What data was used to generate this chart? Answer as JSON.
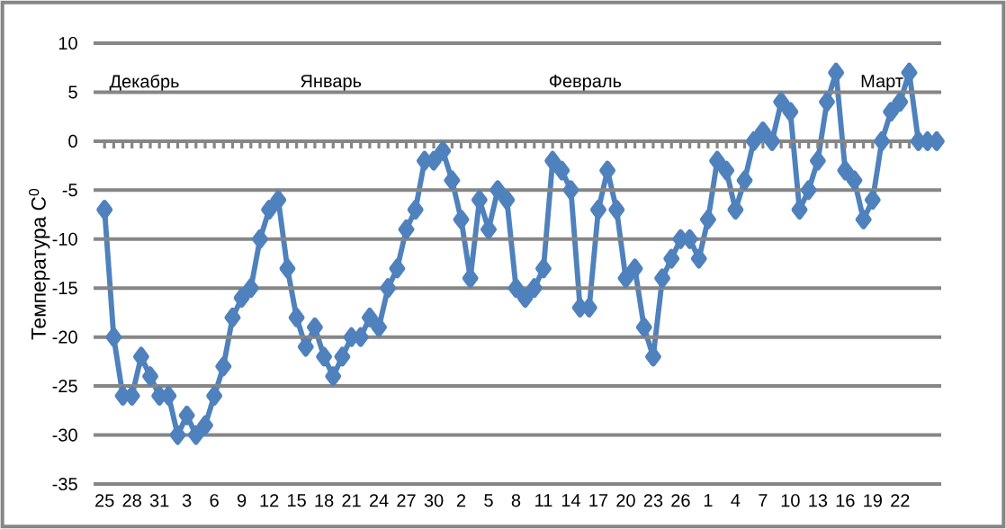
{
  "chart_data": {
    "type": "line",
    "ylabel": "Температура С$^{0}$",
    "categories": [
      "25",
      null,
      null,
      "28",
      null,
      null,
      "31",
      null,
      null,
      "3",
      null,
      null,
      "6",
      null,
      null,
      "9",
      null,
      null,
      "12",
      null,
      null,
      "15",
      null,
      null,
      "18",
      null,
      null,
      "21",
      null,
      null,
      "24",
      null,
      null,
      "27",
      null,
      null,
      "30",
      null,
      null,
      "2",
      null,
      null,
      "5",
      null,
      null,
      "8",
      null,
      null,
      "11",
      null,
      null,
      "14",
      null,
      null,
      "17",
      null,
      null,
      "20",
      null,
      null,
      "23",
      null,
      null,
      "26",
      null,
      null,
      "1",
      null,
      null,
      "4",
      null,
      null,
      "7",
      null,
      null,
      "10",
      null,
      null,
      "13",
      null,
      null,
      "16",
      null,
      null,
      "19",
      null,
      null,
      "22",
      null,
      null,
      null,
      null
    ],
    "values": [
      -7,
      -20,
      -26,
      -26,
      -22,
      -24,
      -26,
      -26,
      -30,
      -28,
      -30,
      -29,
      -26,
      -23,
      -18,
      -16,
      -15,
      -10,
      -7,
      -6,
      -13,
      -18,
      -21,
      -19,
      -22,
      -24,
      -22,
      -20,
      -20,
      -18,
      -19,
      -15,
      -13,
      -9,
      -7,
      -2,
      -2,
      -1,
      -4,
      -8,
      -14,
      -6,
      -9,
      -5,
      -6,
      -15,
      -16,
      -15,
      -13,
      -2,
      -3,
      -5,
      -17,
      -17,
      -7,
      -3,
      -7,
      -14,
      -13,
      -19,
      -22,
      -14,
      -12,
      -10,
      -10,
      -12,
      -8,
      -2,
      -3,
      -7,
      -4,
      0,
      1,
      0,
      4,
      3,
      -7,
      -5,
      -2,
      4,
      7,
      -3,
      -4,
      -8,
      -6,
      0,
      3,
      4,
      7,
      0,
      0,
      0
    ],
    "color": "#4f81bd",
    "marker": "diamond",
    "line_style": "solid",
    "grid": "y",
    "ylim": [
      -35,
      10
    ],
    "yticks": [
      -35,
      -30,
      -25,
      -20,
      -15,
      -10,
      -5,
      0,
      5,
      10
    ],
    "annotations": [
      "Декабрь",
      "Январь",
      "Февраль",
      "Март"
    ]
  }
}
